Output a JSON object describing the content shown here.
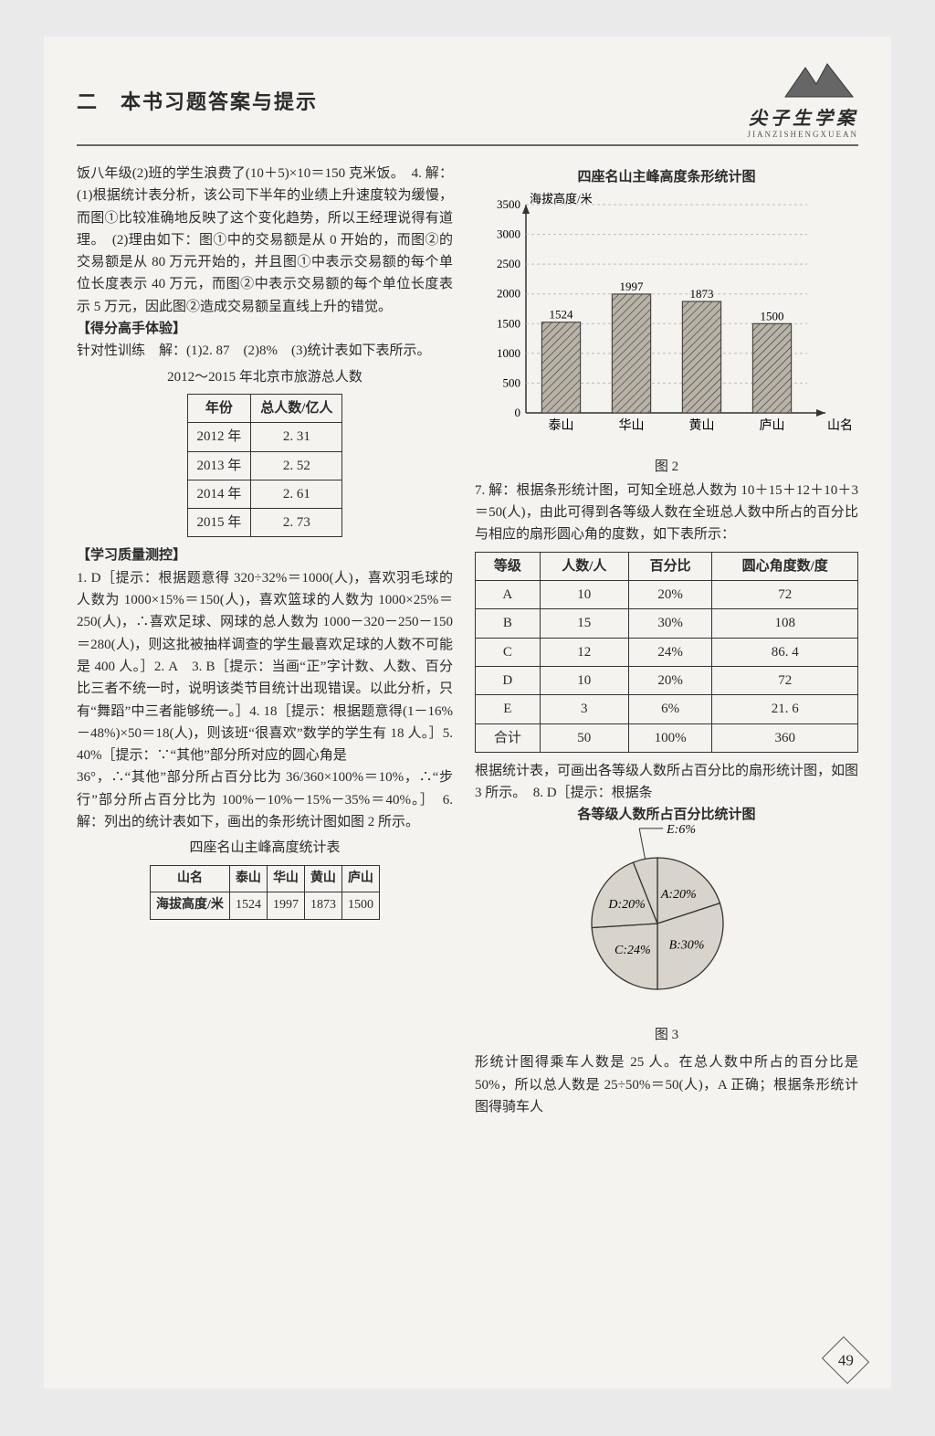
{
  "header": {
    "title": "二　本书习题答案与提示",
    "logo_text": "尖子生学案",
    "logo_sub": "JIANZISHENGXUEAN"
  },
  "left": {
    "p1": "饭八年级(2)班的学生浪费了(10＋5)×10＝150 克米饭。　4. 解：(1)根据统计表分析，该公司下半年的业绩上升速度较为缓慢，而图①比较准确地反映了这个变化趋势，所以王经理说得有道理。　(2)理由如下：图①中的交易额是从 0 开始的，而图②的交易额是从 80 万元开始的，并且图①中表示交易额的每个单位长度表示 40 万元，而图②中表示交易额的每个单位长度表示 5 万元，因此图②造成交易额呈直线上升的错觉。",
    "tag1": "【得分高手体验】",
    "p2": "针对性训练　解：(1)2. 87　(2)8%　(3)统计表如下表所示。",
    "table1_caption": "2012～2015 年北京市旅游总人数",
    "table1": {
      "headers": [
        "年份",
        "总人数/亿人"
      ],
      "rows": [
        [
          "2012 年",
          "2. 31"
        ],
        [
          "2013 年",
          "2. 52"
        ],
        [
          "2014 年",
          "2. 61"
        ],
        [
          "2015 年",
          "2. 73"
        ]
      ]
    },
    "tag2": "【学习质量测控】",
    "p3": "1. D［提示：根据题意得 320÷32%＝1000(人)，喜欢羽毛球的人数为 1000×15%＝150(人)，喜欢篮球的人数为 1000×25%＝250(人)，∴喜欢足球、网球的总人数为 1000－320－250－150＝280(人)，则这批被抽样调查的学生最喜欢足球的人数不可能是 400 人。］2. A　3. B［提示：当画“正”字计数、人数、百分比三者不统一时，说明该类节目统计出现错误。以此分析，只有“舞蹈”中三者能够统一。］4. 18［提示：根据题意得(1－16%－48%)×50＝18(人)，则该班“很喜欢”数学的学生有 18 人。］5. 40%［提示：∵“其他”部分所对应的圆心角是",
    "p4": "36°，∴“其他”部分所占百分比为 36/360×100%＝10%，∴“步行”部分所占百分比为 100%－10%－15%－35%＝40%。］　6. 解：列出的统计表如下，画出的条形统计图如图 2 所示。",
    "table2_caption": "四座名山主峰高度统计表",
    "table2": {
      "headers": [
        "山名",
        "泰山",
        "华山",
        "黄山",
        "庐山"
      ],
      "row_label": "海拔高度/米",
      "values": [
        "1524",
        "1997",
        "1873",
        "1500"
      ]
    }
  },
  "right": {
    "chart": {
      "title": "四座名山主峰高度条形统计图",
      "y_label": "海拔高度/米",
      "x_label": "山名",
      "ymax": 3500,
      "ytick_step": 500,
      "categories": [
        "泰山",
        "华山",
        "黄山",
        "庐山"
      ],
      "values": [
        1524,
        1997,
        1873,
        1500
      ],
      "bar_fill": "#b8b2a7",
      "axis_color": "#333333",
      "grid_color": "#bdbdbd",
      "fig_label": "图 2"
    },
    "p1": "7. 解：根据条形统计图，可知全班总人数为 10＋15＋12＋10＋3＝50(人)，由此可得到各等级人数在全班总人数中所占的百分比与相应的扇形圆心角的度数，如下表所示：",
    "table3": {
      "headers": [
        "等级",
        "人数/人",
        "百分比",
        "圆心角度数/度"
      ],
      "rows": [
        [
          "A",
          "10",
          "20%",
          "72"
        ],
        [
          "B",
          "15",
          "30%",
          "108"
        ],
        [
          "C",
          "12",
          "24%",
          "86. 4"
        ],
        [
          "D",
          "10",
          "20%",
          "72"
        ],
        [
          "E",
          "3",
          "6%",
          "21. 6"
        ],
        [
          "合计",
          "50",
          "100%",
          "360"
        ]
      ]
    },
    "p2": "根据统计表，可画出各等级人数所占百分比的扇形统计图，如图 3 所示。　8. D［提示：根据条",
    "pie": {
      "title": "各等级人数所占百分比统计图",
      "slices": [
        {
          "label": "A:20%",
          "value": 20,
          "label_pos": "inside"
        },
        {
          "label": "B:30%",
          "value": 30,
          "label_pos": "inside"
        },
        {
          "label": "C:24%",
          "value": 24,
          "label_pos": "inside"
        },
        {
          "label": "D:20%",
          "value": 20,
          "label_pos": "inside"
        },
        {
          "label": "E:6%",
          "value": 6,
          "label_pos": "outside"
        }
      ],
      "stroke": "#333333",
      "fill": "#d9d4cb",
      "fig_label": "图 3"
    },
    "p3": "形统计图得乘车人数是 25 人。在总人数中所占的百分比是 50%，所以总人数是 25÷50%＝50(人)，A 正确；根据条形统计图得骑车人"
  },
  "page_number": "49"
}
